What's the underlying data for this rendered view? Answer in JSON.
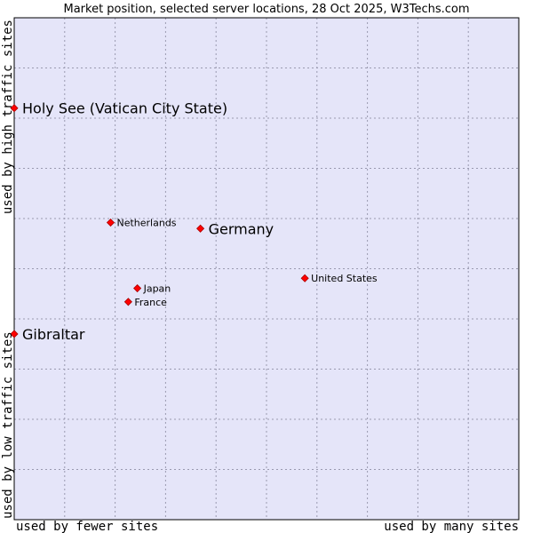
{
  "chart_data": {
    "type": "scatter",
    "title": "Market position, selected server locations, 28 Oct 2025, W3Techs.com",
    "xlabel_left": "used by fewer sites",
    "xlabel_right": "used by many sites",
    "ylabel_bottom": "used by low traffic sites",
    "ylabel_top": "used by high traffic sites",
    "xlim": [
      0,
      100
    ],
    "ylim": [
      0,
      100
    ],
    "grid": true,
    "colors": {
      "plot_bg": "#e5e5f9",
      "grid": "#9a9ab0",
      "point": "#ff0000",
      "point_edge": "#aa0000",
      "border": "#000000"
    },
    "points": [
      {
        "label": "Holy See (Vatican City State)",
        "x": 0,
        "y": 82,
        "emphasis": true
      },
      {
        "label": "Netherlands",
        "x": 19.1,
        "y": 59.2,
        "emphasis": false
      },
      {
        "label": "Germany",
        "x": 36.9,
        "y": 58.0,
        "emphasis": true
      },
      {
        "label": "United States",
        "x": 57.6,
        "y": 48.1,
        "emphasis": false
      },
      {
        "label": "Japan",
        "x": 24.4,
        "y": 46.1,
        "emphasis": false
      },
      {
        "label": "France",
        "x": 22.6,
        "y": 43.4,
        "emphasis": false
      },
      {
        "label": "Gibraltar",
        "x": 0,
        "y": 37.0,
        "emphasis": true
      }
    ]
  }
}
